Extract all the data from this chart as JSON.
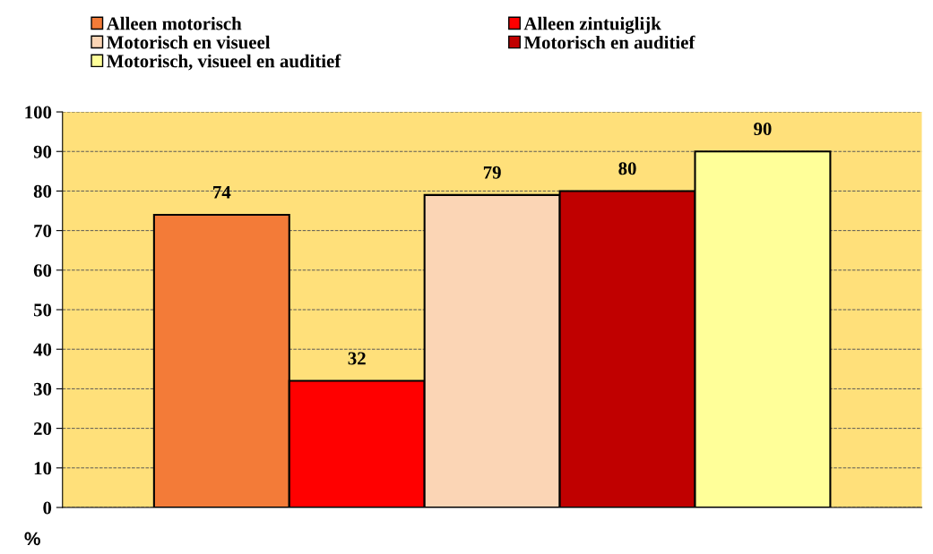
{
  "chart_data": {
    "type": "bar",
    "ylabel": "%",
    "categories": [
      null
    ],
    "series": [
      {
        "name": "Alleen motorisch",
        "color": "#f37b38",
        "values": [
          74
        ]
      },
      {
        "name": "Alleen zintuiglijk",
        "color": "#ff0000",
        "values": [
          32
        ]
      },
      {
        "name": "Motorisch en visueel",
        "color": "#fbd5b5",
        "values": [
          79
        ]
      },
      {
        "name": "Motorisch en auditief",
        "color": "#c00000",
        "values": [
          80
        ]
      },
      {
        "name": "Motorisch, visueel en auditief",
        "color": "#ffff99",
        "values": [
          90
        ]
      }
    ],
    "ylim": [
      0,
      100
    ],
    "yticks": [
      0,
      10,
      20,
      30,
      40,
      50,
      60,
      70,
      80,
      90,
      100
    ],
    "grid": "y",
    "legend": "top",
    "data_labels": true
  }
}
